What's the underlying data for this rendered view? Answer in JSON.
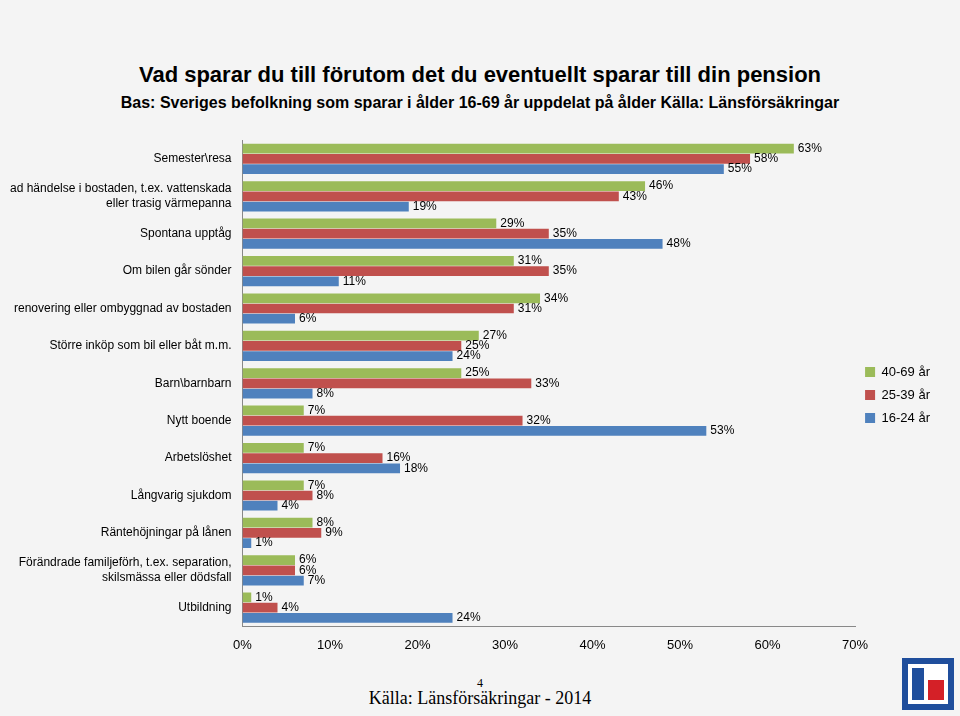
{
  "chart_data": {
    "type": "bar",
    "title": "Vad sparar du till förutom det du eventuellt sparar till din pension",
    "subtitle": "Bas: Sveriges befolkning som sparar i ålder 16-69 år uppdelat på ålder Källa: Länsförsäkringar",
    "orientation": "horizontal",
    "categories": [
      "Semester\\resa",
      "Oplanerad händelse i bostaden, t.ex. vattenskada eller trasig värmepanna",
      "Spontana upptåg",
      "Om bilen går sönder",
      "Planerad renovering eller ombyggnad av bostaden",
      "Större inköp som bil eller båt m.m.",
      "Barn\\barnbarn",
      "Nytt boende",
      "Arbetslöshet",
      "Långvarig sjukdom",
      "Räntehöjningar på lånen",
      "Förändrade familjeförh, t.ex. separation, skilsmässa eller dödsfall",
      "Utbildning"
    ],
    "series": [
      {
        "name": "40-69 år",
        "color": "#9BBB59",
        "values": [
          63,
          46,
          29,
          31,
          34,
          27,
          25,
          7,
          7,
          7,
          8,
          6,
          1
        ],
        "value_labels": [
          "63%",
          "46%",
          "29%",
          "31%",
          "34%",
          "27%",
          "25%",
          "7%",
          "7%",
          "7%",
          "8%",
          "6%",
          "1%"
        ]
      },
      {
        "name": "25-39 år",
        "color": "#C0504D",
        "values": [
          58,
          43,
          35,
          35,
          31,
          25,
          33,
          32,
          16,
          8,
          9,
          6,
          4
        ],
        "value_labels": [
          "58%",
          "43%",
          "35%",
          "35%",
          "31%",
          "25%",
          "33%",
          "32%",
          "16%",
          "8%",
          "9%",
          "6%",
          "4%"
        ]
      },
      {
        "name": "16-24 år",
        "color": "#4F81BD",
        "values": [
          55,
          19,
          48,
          11,
          6,
          24,
          8,
          53,
          18,
          4,
          1,
          7,
          24
        ],
        "value_labels": [
          "55%",
          "19%",
          "48%",
          "11%",
          "6%",
          "24%",
          "8%",
          "53%",
          "18%",
          "4%",
          "1%",
          "7%",
          "24%"
        ]
      }
    ],
    "xlim": [
      0,
      70
    ],
    "xticks": [
      {
        "value": 0,
        "label": "0%"
      },
      {
        "value": 10,
        "label": "10%"
      },
      {
        "value": 20,
        "label": "20%"
      },
      {
        "value": 30,
        "label": "30%"
      },
      {
        "value": 40,
        "label": "40%"
      },
      {
        "value": 50,
        "label": "50%"
      },
      {
        "value": 60,
        "label": "60%"
      },
      {
        "value": 70,
        "label": "70%"
      }
    ],
    "grid": false,
    "legend": "right",
    "data_labels": true,
    "source": "Källa: Länsförsäkringar - 2014",
    "page_number": "4"
  }
}
